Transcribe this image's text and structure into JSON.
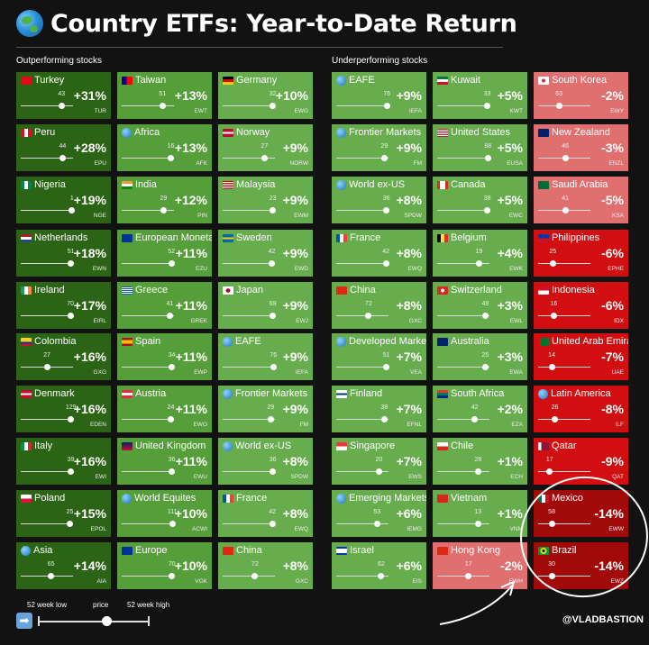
{
  "title": "Country ETFs: Year-to-Date Return",
  "sections": {
    "outperforming": "Outperforming stocks",
    "underperforming": "Underperforming stocks"
  },
  "legend": {
    "low": "52 week low",
    "price": "price",
    "high": "52 week high"
  },
  "watermark": "@VLADBASTION",
  "colors": {
    "darkGreen": "#2b6414",
    "midGreen": "#559e3a",
    "lightGreen": "#67ad4e",
    "lightRed": "#e06f70",
    "red": "#d10f10",
    "darkRed": "#a20a0a"
  },
  "columns": [
    {
      "color": "darkGreen",
      "tiles": [
        {
          "name": "Turkey",
          "flag": "tr",
          "count": "43",
          "pct": "+31%",
          "ticker": "TUR",
          "pos": 0.78
        },
        {
          "name": "Peru",
          "flag": "pe",
          "count": "44",
          "pct": "+28%",
          "ticker": "EPU",
          "pos": 0.8
        },
        {
          "name": "Nigeria",
          "flag": "ng",
          "count": "1",
          "pct": "+19%",
          "ticker": "NGE",
          "pos": 0.98
        },
        {
          "name": "Netherlands",
          "flag": "nl",
          "count": "51",
          "pct": "+18%",
          "ticker": "EWN",
          "pos": 0.96
        },
        {
          "name": "Ireland",
          "flag": "ie",
          "count": "70",
          "pct": "+17%",
          "ticker": "EIRL",
          "pos": 0.95
        },
        {
          "name": "Colombia",
          "flag": "co",
          "count": "27",
          "pct": "+16%",
          "ticker": "GXG",
          "pos": 0.5
        },
        {
          "name": "Denmark",
          "flag": "dk",
          "count": "129",
          "pct": "+16%",
          "ticker": "EDEN",
          "pos": 0.96
        },
        {
          "name": "Italy",
          "flag": "it",
          "count": "39",
          "pct": "+16%",
          "ticker": "EWI",
          "pos": 0.96
        },
        {
          "name": "Poland",
          "flag": "pl",
          "count": "25",
          "pct": "+15%",
          "ticker": "EPOL",
          "pos": 0.94
        },
        {
          "name": "Asia",
          "flag": "globe",
          "count": "65",
          "pct": "+14%",
          "ticker": "AIA",
          "pos": 0.58
        }
      ]
    },
    {
      "color": "midGreen",
      "tiles": [
        {
          "name": "Taiwan",
          "flag": "tw",
          "count": "51",
          "pct": "+13%",
          "ticker": "EWT",
          "pos": 0.78
        },
        {
          "name": "Africa",
          "flag": "globe",
          "count": "16",
          "pct": "+13%",
          "ticker": "AFK",
          "pos": 0.94
        },
        {
          "name": "India",
          "flag": "in",
          "count": "29",
          "pct": "+12%",
          "ticker": "PIN",
          "pos": 0.8
        },
        {
          "name": "European Monetary",
          "flag": "eu",
          "count": "52",
          "pct": "+11%",
          "ticker": "EZU",
          "pos": 0.95
        },
        {
          "name": "Greece",
          "flag": "gr",
          "count": "41",
          "pct": "+11%",
          "ticker": "GREK",
          "pos": 0.92
        },
        {
          "name": "Spain",
          "flag": "es",
          "count": "34",
          "pct": "+11%",
          "ticker": "EWP",
          "pos": 0.96
        },
        {
          "name": "Austria",
          "flag": "at",
          "count": "24",
          "pct": "+11%",
          "ticker": "EWO",
          "pos": 0.94
        },
        {
          "name": "United Kingdom",
          "flag": "gb",
          "count": "36",
          "pct": "+11%",
          "ticker": "EWU",
          "pos": 0.96
        },
        {
          "name": "World Equites",
          "flag": "globe",
          "count": "111",
          "pct": "+10%",
          "ticker": "ACWI",
          "pos": 0.97
        },
        {
          "name": "Europe",
          "flag": "eu",
          "count": "70",
          "pct": "+10%",
          "ticker": "VGK",
          "pos": 0.96
        }
      ]
    },
    {
      "color": "lightGreen",
      "tiles": [
        {
          "name": "Germany",
          "flag": "de",
          "count": "32",
          "pct": "+10%",
          "ticker": "EWG",
          "pos": 0.96
        },
        {
          "name": "Norway",
          "flag": "no",
          "count": "27",
          "pct": "+9%",
          "ticker": "NORW",
          "pos": 0.8
        },
        {
          "name": "Malaysia",
          "flag": "my",
          "count": "23",
          "pct": "+9%",
          "ticker": "EWM",
          "pos": 0.96
        },
        {
          "name": "Sweden",
          "flag": "se",
          "count": "42",
          "pct": "+9%",
          "ticker": "EWD",
          "pos": 0.94
        },
        {
          "name": "Japan",
          "flag": "jp",
          "count": "69",
          "pct": "+9%",
          "ticker": "EWJ",
          "pos": 0.96
        },
        {
          "name": "EAFE",
          "flag": "globe",
          "count": "76",
          "pct": "+9%",
          "ticker": "IEFA",
          "pos": 0.97
        },
        {
          "name": "Frontier Markets",
          "flag": "globe",
          "count": "29",
          "pct": "+9%",
          "ticker": "FM",
          "pos": 0.92
        },
        {
          "name": "World ex-US",
          "flag": "globe",
          "count": "36",
          "pct": "+8%",
          "ticker": "SPDW",
          "pos": 0.96
        },
        {
          "name": "France",
          "flag": "fr",
          "count": "42",
          "pct": "+8%",
          "ticker": "EWQ",
          "pos": 0.95
        },
        {
          "name": "China",
          "flag": "cn",
          "count": "72",
          "pct": "+8%",
          "ticker": "GXC",
          "pos": 0.62
        }
      ]
    },
    {
      "color": "lightGreen",
      "tiles": [
        {
          "name": "EAFE",
          "flag": "globe",
          "count": "76",
          "pct": "+9%",
          "ticker": "IEFA",
          "pos": 0.97
        },
        {
          "name": "Frontier Markets",
          "flag": "globe",
          "count": "29",
          "pct": "+9%",
          "ticker": "FM",
          "pos": 0.92
        },
        {
          "name": "World ex-US",
          "flag": "globe",
          "count": "36",
          "pct": "+8%",
          "ticker": "SPDW",
          "pos": 0.96
        },
        {
          "name": "France",
          "flag": "fr",
          "count": "42",
          "pct": "+8%",
          "ticker": "EWQ",
          "pos": 0.95
        },
        {
          "name": "China",
          "flag": "cn",
          "count": "72",
          "pct": "+8%",
          "ticker": "GXC",
          "pos": 0.62
        },
        {
          "name": "Developed Markets",
          "flag": "globe",
          "count": "51",
          "pct": "+7%",
          "ticker": "VEA",
          "pos": 0.96
        },
        {
          "name": "Finland",
          "flag": "fi",
          "count": "38",
          "pct": "+7%",
          "ticker": "EFNL",
          "pos": 0.92
        },
        {
          "name": "Singapore",
          "flag": "sg",
          "count": "20",
          "pct": "+7%",
          "ticker": "EWS",
          "pos": 0.82
        },
        {
          "name": "Emerging Markets",
          "flag": "globe",
          "count": "53",
          "pct": "+6%",
          "ticker": "IEMG",
          "pos": 0.78
        },
        {
          "name": "Israel",
          "flag": "il",
          "count": "62",
          "pct": "+6%",
          "ticker": "EIS",
          "pos": 0.86
        }
      ]
    },
    {
      "color": "lightGreen",
      "tiles": [
        {
          "name": "Kuwait",
          "flag": "kw",
          "count": "33",
          "pct": "+5%",
          "ticker": "KWT",
          "pos": 0.96
        },
        {
          "name": "United States",
          "flag": "us",
          "count": "88",
          "pct": "+5%",
          "ticker": "EUSA",
          "pos": 0.97
        },
        {
          "name": "Canada",
          "flag": "ca",
          "count": "38",
          "pct": "+5%",
          "ticker": "EWC",
          "pos": 0.96
        },
        {
          "name": "Belgium",
          "flag": "be",
          "count": "19",
          "pct": "+4%",
          "ticker": "EWK",
          "pos": 0.8
        },
        {
          "name": "Switzerland",
          "flag": "ch",
          "count": "49",
          "pct": "+3%",
          "ticker": "EWL",
          "pos": 0.92
        },
        {
          "name": "Australia",
          "flag": "au",
          "count": "25",
          "pct": "+3%",
          "ticker": "EWA",
          "pos": 0.92
        },
        {
          "name": "South Africa",
          "flag": "za",
          "count": "42",
          "pct": "+2%",
          "ticker": "EZA",
          "pos": 0.72
        },
        {
          "name": "Chile",
          "flag": "cl",
          "count": "28",
          "pct": "+1%",
          "ticker": "ECH",
          "pos": 0.78
        },
        {
          "name": "Vietnam",
          "flag": "vn",
          "count": "13",
          "pct": "+1%",
          "ticker": "VNM",
          "pos": 0.78
        },
        {
          "name": "Hong Kong",
          "flag": "hk",
          "count": "17",
          "pct": "-2%",
          "ticker": "EWH",
          "pos": 0.6,
          "color": "lightRed"
        }
      ]
    },
    {
      "color": "lightRed",
      "tiles": [
        {
          "name": "South Korea",
          "flag": "kr",
          "count": "63",
          "pct": "-2%",
          "ticker": "EWY",
          "pos": 0.4
        },
        {
          "name": "New Zealand",
          "flag": "nz",
          "count": "46",
          "pct": "-3%",
          "ticker": "ENZL",
          "pos": 0.52
        },
        {
          "name": "Saudi Arabia",
          "flag": "sa",
          "count": "41",
          "pct": "-5%",
          "ticker": "KSA",
          "pos": 0.52
        },
        {
          "name": "Philippines",
          "flag": "ph",
          "count": "25",
          "pct": "-6%",
          "ticker": "EPHE",
          "pos": 0.28,
          "color": "red"
        },
        {
          "name": "Indonesia",
          "flag": "id",
          "count": "16",
          "pct": "-6%",
          "ticker": "IDX",
          "pos": 0.3,
          "color": "red"
        },
        {
          "name": "United Arab Emirates",
          "flag": "ae",
          "count": "14",
          "pct": "-7%",
          "ticker": "UAE",
          "pos": 0.26,
          "color": "red"
        },
        {
          "name": "Latin America",
          "flag": "globe",
          "count": "26",
          "pct": "-8%",
          "ticker": "ILF",
          "pos": 0.32,
          "color": "red"
        },
        {
          "name": "Qatar",
          "flag": "qa",
          "count": "17",
          "pct": "-9%",
          "ticker": "QAT",
          "pos": 0.22,
          "color": "red"
        },
        {
          "name": "Mexico",
          "flag": "mx",
          "count": "58",
          "pct": "-14%",
          "ticker": "EWW",
          "pos": 0.26,
          "color": "darkRed"
        },
        {
          "name": "Brazil",
          "flag": "br",
          "count": "30",
          "pct": "-14%",
          "ticker": "EWZ",
          "pos": 0.26,
          "color": "darkRed"
        }
      ]
    }
  ]
}
